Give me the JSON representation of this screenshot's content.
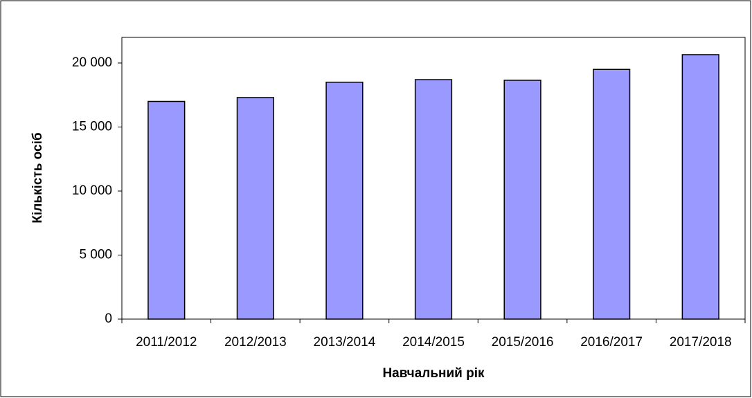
{
  "chart_data": {
    "type": "bar",
    "x_label": "Навчальний рік",
    "y_label": "Кількість осіб",
    "categories": [
      "2011/2012",
      "2012/2013",
      "2013/2014",
      "2014/2015",
      "2015/2016",
      "2016/2017",
      "2017/2018"
    ],
    "values": [
      17000,
      17300,
      18500,
      18700,
      18650,
      19500,
      20650
    ],
    "color": "#9999ff",
    "ylim": [
      0,
      22000
    ],
    "yticks": [
      0,
      {
        "value": 5000,
        "label": "5 000"
      },
      {
        "value": 10000,
        "label": "10 000"
      },
      {
        "value": 15000,
        "label": "15 000"
      },
      {
        "value": 20000,
        "label": "20 000"
      }
    ],
    "grid": false
  }
}
